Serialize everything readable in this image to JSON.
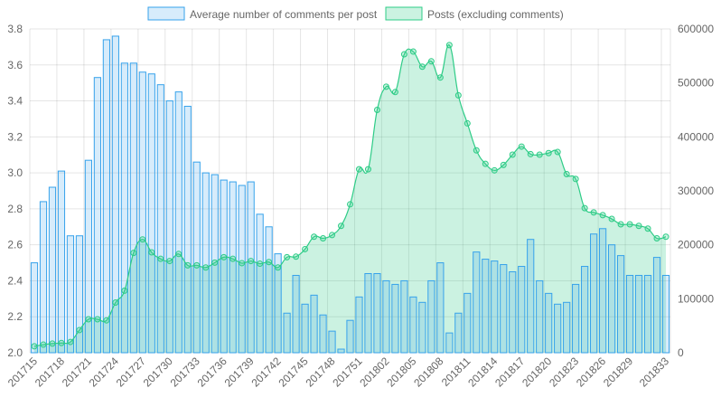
{
  "chart_data": {
    "type": "bar",
    "categories": [
      "201715",
      "201716",
      "201717",
      "201718",
      "201719",
      "201720",
      "201721",
      "201722",
      "201723",
      "201724",
      "201725",
      "201726",
      "201727",
      "201728",
      "201729",
      "201730",
      "201731",
      "201732",
      "201733",
      "201734",
      "201735",
      "201736",
      "201737",
      "201738",
      "201739",
      "201740",
      "201741",
      "201742",
      "201743",
      "201744",
      "201745",
      "201746",
      "201747",
      "201748",
      "201749",
      "201750",
      "201751",
      "201752",
      "201801",
      "201802",
      "201803",
      "201804",
      "201805",
      "201806",
      "201807",
      "201808",
      "201809",
      "201810",
      "201811",
      "201812",
      "201813",
      "201814",
      "201815",
      "201816",
      "201817",
      "201818",
      "201819",
      "201820",
      "201821",
      "201822",
      "201823",
      "201824",
      "201825",
      "201826",
      "201827",
      "201828",
      "201829",
      "201830",
      "201831",
      "201832",
      "201833"
    ],
    "x_tick_labels": [
      "201715",
      "201718",
      "201721",
      "201724",
      "201727",
      "201730",
      "201733",
      "201736",
      "201739",
      "201742",
      "201745",
      "201748",
      "201751",
      "201802",
      "201805",
      "201808",
      "201811",
      "201814",
      "201817",
      "201820",
      "201823",
      "201826",
      "201829",
      "201833"
    ],
    "series": [
      {
        "name": "Average number of comments per post",
        "type": "bar",
        "axis": "left",
        "color": "#36a2eb",
        "fill": "rgba(54,162,235,0.2)",
        "values": [
          2.5,
          2.84,
          2.92,
          3.01,
          2.65,
          2.65,
          3.07,
          3.53,
          3.74,
          3.76,
          3.61,
          3.61,
          3.56,
          3.55,
          3.49,
          3.4,
          3.45,
          3.37,
          3.06,
          3.0,
          2.99,
          2.96,
          2.95,
          2.93,
          2.95,
          2.77,
          2.7,
          2.55,
          2.22,
          2.43,
          2.27,
          2.32,
          2.21,
          2.12,
          2.02,
          2.18,
          2.31,
          2.44,
          2.44,
          2.4,
          2.38,
          2.4,
          2.31,
          2.28,
          2.4,
          2.5,
          2.11,
          2.22,
          2.33,
          2.56,
          2.52,
          2.51,
          2.49,
          2.45,
          2.48,
          2.63,
          2.4,
          2.33,
          2.27,
          2.28,
          2.38,
          2.48,
          2.66,
          2.69,
          2.6,
          2.54,
          2.43,
          2.43,
          2.43,
          2.53,
          2.43
        ]
      },
      {
        "name": "Posts (excluding comments)",
        "type": "area",
        "axis": "right",
        "color": "#2ecc87",
        "fill": "rgba(46,204,135,0.25)",
        "values": [
          12000,
          15000,
          17000,
          18000,
          20000,
          42000,
          62000,
          62000,
          60000,
          93000,
          115000,
          185000,
          210000,
          186000,
          174000,
          170000,
          183000,
          162000,
          162000,
          158000,
          167000,
          177000,
          174000,
          166000,
          170000,
          165000,
          168000,
          158000,
          177000,
          178000,
          192000,
          215000,
          212000,
          218000,
          235000,
          275000,
          340000,
          340000,
          450000,
          493000,
          483000,
          553000,
          558000,
          530000,
          540000,
          510000,
          570000,
          477000,
          425000,
          375000,
          350000,
          338000,
          348000,
          367000,
          382000,
          368000,
          367000,
          370000,
          372000,
          331000,
          322000,
          268000,
          260000,
          255000,
          248000,
          238000,
          238000,
          235000,
          230000,
          212000,
          215000
        ]
      }
    ],
    "y_left": {
      "min": 2.0,
      "max": 3.8,
      "ticks": [
        "2.0",
        "2.2",
        "2.4",
        "2.6",
        "2.8",
        "3.0",
        "3.2",
        "3.4",
        "3.6",
        "3.8"
      ]
    },
    "y_right": {
      "min": 0,
      "max": 600000,
      "ticks": [
        "0",
        "100000",
        "200000",
        "300000",
        "400000",
        "500000",
        "600000"
      ]
    },
    "legend_position": "top-center",
    "grid": true
  }
}
